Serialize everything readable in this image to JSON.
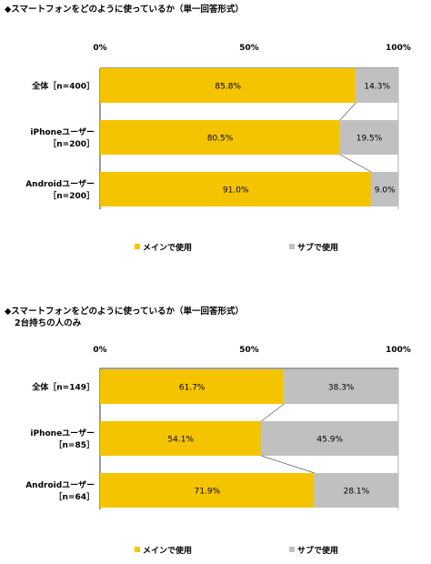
{
  "chart_data": [
    {
      "type": "bar",
      "stacked": "100%",
      "orientation": "horizontal",
      "title": "◆スマートフォンをどのように使っているか（単一回答形式）",
      "subtitle": "",
      "categories": [
        [
          "全体［n=400］"
        ],
        [
          "iPhoneユーザー",
          "［n=200］"
        ],
        [
          "Androidユーザー",
          "［n=200］"
        ]
      ],
      "ticks": [
        "0%",
        "50%",
        "100%"
      ],
      "series": [
        {
          "name": "メインで使用",
          "color": "#F5C400",
          "values": [
            85.8,
            80.5,
            91.0
          ],
          "labels": [
            "85.8%",
            "80.5%",
            "91.0%"
          ]
        },
        {
          "name": "サブで使用",
          "color": "#C0C0C0",
          "values": [
            14.3,
            19.5,
            9.0
          ],
          "labels": [
            "14.3%",
            "19.5%",
            "9.0%"
          ]
        }
      ],
      "legend": "bottom"
    },
    {
      "type": "bar",
      "stacked": "100%",
      "orientation": "horizontal",
      "title": "◆スマートフォンをどのように使っているか（単一回答形式）",
      "subtitle": "2台持ちの人のみ",
      "categories": [
        [
          "全体［n=149］"
        ],
        [
          "iPhoneユーザー",
          "［n=85］"
        ],
        [
          "Androidユーザー",
          "［n=64］"
        ]
      ],
      "ticks": [
        "0%",
        "50%",
        "100%"
      ],
      "series": [
        {
          "name": "メインで使用",
          "color": "#F5C400",
          "values": [
            61.7,
            54.1,
            71.9
          ],
          "labels": [
            "61.7%",
            "54.1%",
            "71.9%"
          ]
        },
        {
          "name": "サブで使用",
          "color": "#C0C0C0",
          "values": [
            38.3,
            45.9,
            28.1
          ],
          "labels": [
            "38.3%",
            "45.9%",
            "28.1%"
          ]
        }
      ],
      "legend": "bottom"
    }
  ]
}
